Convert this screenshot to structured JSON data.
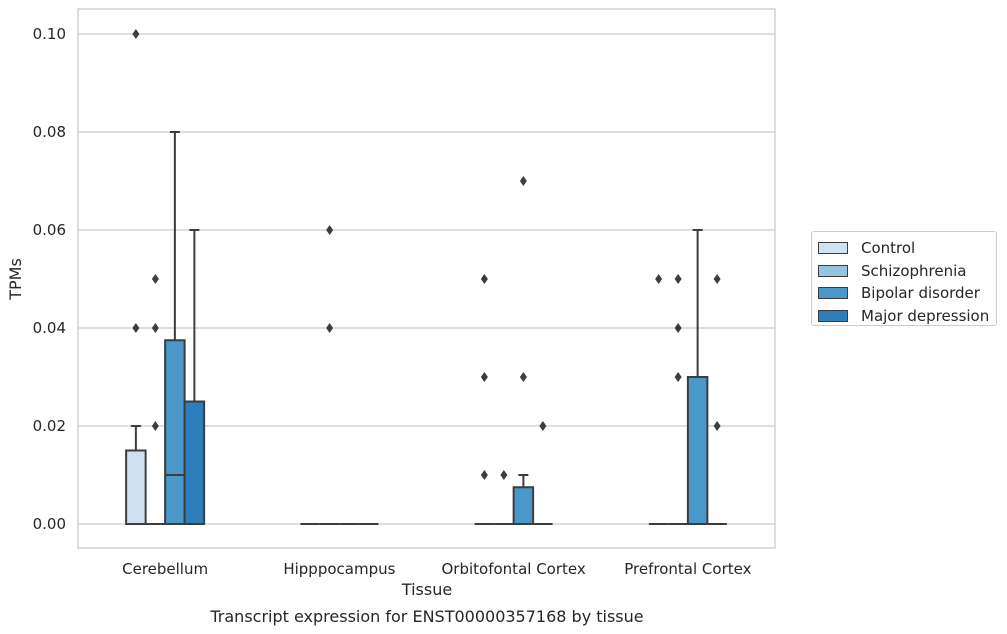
{
  "chart_data": {
    "type": "box",
    "title": "",
    "caption": "Transcript expression for ENST00000357168 by tissue",
    "xlabel": "Tissue",
    "ylabel": "TPMs",
    "ylim": [
      -0.005,
      0.105
    ],
    "yticks": [
      0.0,
      0.02,
      0.04,
      0.06,
      0.08,
      0.1
    ],
    "ytick_labels": [
      "0.00",
      "0.02",
      "0.04",
      "0.06",
      "0.08",
      "0.10"
    ],
    "grid": "horizontal",
    "legend_position": "right-outside",
    "categories": [
      "Cerebellum",
      "Hipppocampus",
      "Orbitofontal Cortex",
      "Prefrontal Cortex"
    ],
    "series": [
      {
        "name": "Control",
        "color": "#d0e1f2",
        "boxes": [
          {
            "q1": 0,
            "median": 0,
            "q3": 0.015,
            "whisker_low": 0,
            "whisker_high": 0.02,
            "outliers": [
              0.04,
              0.1
            ]
          },
          {
            "q1": 0,
            "median": 0,
            "q3": 0,
            "whisker_low": 0,
            "whisker_high": 0,
            "outliers": []
          },
          {
            "q1": 0,
            "median": 0,
            "q3": 0,
            "whisker_low": 0,
            "whisker_high": 0,
            "outliers": [
              0.01,
              0.03,
              0.05
            ]
          },
          {
            "q1": 0,
            "median": 0,
            "q3": 0,
            "whisker_low": 0,
            "whisker_high": 0,
            "outliers": [
              0.05
            ]
          }
        ]
      },
      {
        "name": "Schizophrenia",
        "color": "#94c4df",
        "boxes": [
          {
            "q1": 0,
            "median": 0,
            "q3": 0,
            "whisker_low": 0,
            "whisker_high": 0,
            "outliers": [
              0.02,
              0.04,
              0.05
            ]
          },
          {
            "q1": 0,
            "median": 0,
            "q3": 0,
            "whisker_low": 0,
            "whisker_high": 0,
            "outliers": [
              0.04,
              0.06
            ]
          },
          {
            "q1": 0,
            "median": 0,
            "q3": 0,
            "whisker_low": 0,
            "whisker_high": 0,
            "outliers": [
              0.01
            ]
          },
          {
            "q1": 0,
            "median": 0,
            "q3": 0,
            "whisker_low": 0,
            "whisker_high": 0,
            "outliers": [
              0.03,
              0.04,
              0.05
            ]
          }
        ]
      },
      {
        "name": "Bipolar disorder",
        "color": "#4a98c9",
        "boxes": [
          {
            "q1": 0,
            "median": 0.01,
            "q3": 0.0375,
            "whisker_low": 0,
            "whisker_high": 0.08,
            "outliers": []
          },
          {
            "q1": 0,
            "median": 0,
            "q3": 0,
            "whisker_low": 0,
            "whisker_high": 0,
            "outliers": []
          },
          {
            "q1": 0,
            "median": 0,
            "q3": 0.0075,
            "whisker_low": 0,
            "whisker_high": 0.01,
            "outliers": [
              0.03,
              0.07
            ]
          },
          {
            "q1": 0,
            "median": 0,
            "q3": 0.03,
            "whisker_low": 0,
            "whisker_high": 0.06,
            "outliers": []
          }
        ]
      },
      {
        "name": "Major depression",
        "color": "#2e7ebc",
        "boxes": [
          {
            "q1": 0,
            "median": 0,
            "q3": 0.025,
            "whisker_low": 0,
            "whisker_high": 0.06,
            "outliers": []
          },
          {
            "q1": 0,
            "median": 0,
            "q3": 0,
            "whisker_low": 0,
            "whisker_high": 0,
            "outliers": []
          },
          {
            "q1": 0,
            "median": 0,
            "q3": 0,
            "whisker_low": 0,
            "whisker_high": 0,
            "outliers": [
              0.02
            ]
          },
          {
            "q1": 0,
            "median": 0,
            "q3": 0,
            "whisker_low": 0,
            "whisker_high": 0,
            "outliers": [
              0.02,
              0.05
            ]
          }
        ]
      }
    ]
  }
}
